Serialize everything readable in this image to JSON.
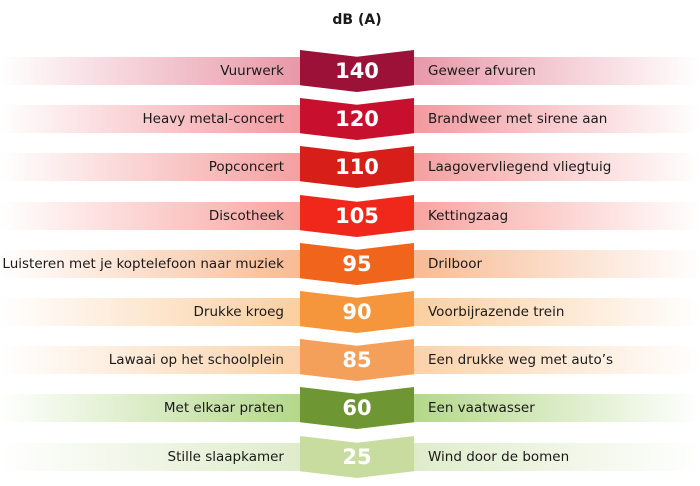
{
  "header": {
    "unit": "dB (A)"
  },
  "rows": [
    {
      "db": "140",
      "left": "Vuurwerk",
      "right": "Geweer afvuren",
      "color": "#9b1138",
      "band": "#e898a8"
    },
    {
      "db": "120",
      "left": "Heavy metal-concert",
      "right": "Brandweer met sirene aan",
      "color": "#c8102e",
      "band": "#f29aa0"
    },
    {
      "db": "110",
      "left": "Popconcert",
      "right": "Laagovervliegend vliegtuig",
      "color": "#d81e18",
      "band": "#f4a0a0"
    },
    {
      "db": "105",
      "left": "Discotheek",
      "right": "Kettingzaag",
      "color": "#f0281c",
      "band": "#f8a4a0"
    },
    {
      "db": "95",
      "left": "Luisteren met je koptelefoon naar muziek",
      "right": "Drilboor",
      "color": "#f0641c",
      "band": "#f8bb94"
    },
    {
      "db": "90",
      "left": "Drukke kroeg",
      "right": "Voorbijrazende trein",
      "color": "#f5963c",
      "band": "#fbcfa0"
    },
    {
      "db": "85",
      "left": "Lawaai op het schoolplein",
      "right": "Een drukke weg met auto’s",
      "color": "#f5a05a",
      "band": "#fbd2aa"
    },
    {
      "db": "60",
      "left": "Met elkaar praten",
      "right": "Een vaatwasser",
      "color": "#6e9632",
      "band": "#b4d88a"
    },
    {
      "db": "25",
      "left": "Stille slaapkamer",
      "right": "Wind door de bomen",
      "color": "#c8dca0",
      "band": "#dfeccb"
    }
  ]
}
